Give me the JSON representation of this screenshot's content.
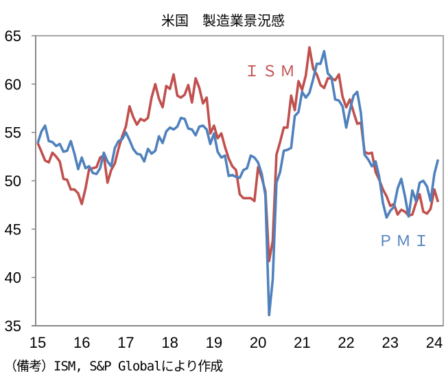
{
  "chart_data": {
    "type": "line",
    "title": "米国　製造業景況感",
    "note": "（備考）ISM, S&P Globalにより作成",
    "x_start": "2015-01",
    "x_frequency": "monthly",
    "x_ticks": [
      "15",
      "16",
      "17",
      "18",
      "19",
      "20",
      "21",
      "22",
      "23",
      "24"
    ],
    "y_ticks": [
      "65",
      "60",
      "55",
      "50",
      "45",
      "40",
      "35"
    ],
    "ylim": [
      35,
      65
    ],
    "grid": false,
    "series": [
      {
        "name": "ＩＳＭ",
        "color": "#c0504d",
        "values": [
          53.9,
          53.0,
          52.1,
          51.9,
          52.9,
          52.5,
          52.0,
          50.2,
          50.1,
          49.1,
          49.1,
          48.7,
          47.6,
          49.2,
          51.2,
          51.3,
          51.4,
          52.4,
          52.6,
          49.8,
          51.1,
          51.8,
          53.3,
          54.6,
          55.6,
          57.7,
          56.6,
          55.8,
          56.4,
          56.2,
          56.5,
          58.6,
          60.0,
          58.5,
          57.6,
          59.8,
          59.5,
          61.0,
          58.8,
          58.6,
          58.9,
          59.9,
          58.1,
          60.6,
          59.6,
          58.0,
          58.6,
          54.9,
          55.7,
          54.4,
          54.9,
          53.5,
          52.3,
          51.5,
          51.1,
          48.6,
          48.2,
          48.2,
          48.2,
          47.9,
          51.4,
          50.3,
          48.9,
          41.7,
          43.8,
          52.7,
          54.0,
          55.5,
          55.5,
          58.8,
          57.3,
          60.3,
          59.4,
          60.9,
          63.8,
          61.6,
          61.0,
          59.9,
          59.6,
          60.6,
          60.6,
          60.4,
          61.0,
          58.7,
          57.6,
          58.4,
          57.1,
          55.9,
          56.0,
          53.0,
          52.8,
          52.9,
          50.9,
          50.1,
          49.1,
          48.4,
          47.4,
          47.6,
          46.5,
          47.0,
          46.8,
          46.4,
          46.5,
          47.7,
          48.6,
          46.8,
          46.6,
          47.1,
          49.1,
          47.8
        ]
      },
      {
        "name": "ＰＭＩ",
        "color": "#4f81bd",
        "values": [
          53.9,
          55.1,
          55.7,
          54.1,
          54.0,
          53.6,
          53.8,
          53.0,
          53.1,
          54.1,
          52.8,
          51.2,
          52.4,
          51.3,
          51.5,
          50.8,
          50.7,
          51.3,
          52.9,
          52.0,
          51.5,
          53.4,
          54.1,
          54.3,
          55.0,
          54.2,
          53.3,
          52.8,
          52.7,
          52.0,
          53.3,
          52.8,
          53.1,
          54.6,
          53.9,
          55.1,
          55.5,
          55.3,
          55.6,
          56.5,
          56.4,
          55.4,
          55.3,
          54.7,
          55.6,
          55.7,
          55.3,
          53.8,
          54.9,
          53.0,
          52.4,
          52.6,
          50.5,
          50.6,
          50.4,
          50.3,
          51.1,
          51.3,
          52.6,
          52.4,
          51.9,
          50.7,
          48.5,
          36.1,
          39.8,
          49.8,
          50.9,
          53.1,
          53.2,
          53.4,
          56.7,
          57.1,
          59.2,
          58.6,
          59.1,
          60.5,
          62.1,
          62.1,
          63.4,
          61.1,
          60.7,
          58.4,
          58.3,
          57.7,
          55.5,
          57.3,
          58.8,
          59.2,
          57.0,
          52.7,
          52.2,
          51.5,
          52.0,
          50.4,
          47.7,
          46.2,
          46.9,
          47.3,
          49.2,
          50.2,
          48.4,
          46.3,
          49.0,
          47.9,
          49.8,
          50.0,
          49.4,
          47.9,
          50.7,
          52.2
        ]
      }
    ]
  }
}
